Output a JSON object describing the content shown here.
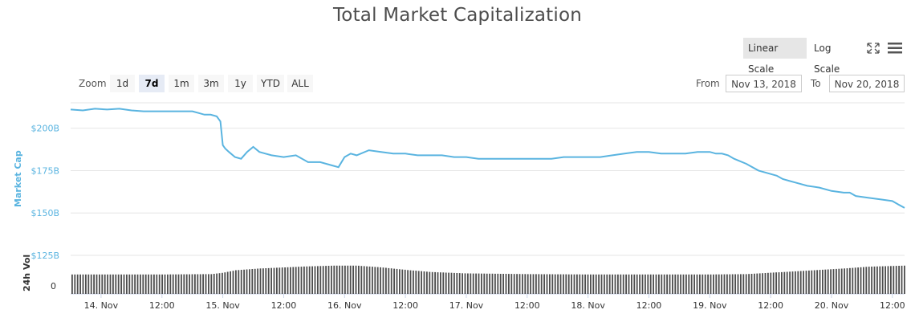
{
  "title": "Total Market Capitalization",
  "scale": {
    "linear_label": "Linear Scale",
    "log_label": "Log Scale"
  },
  "icons": {
    "fullscreen": "fullscreen-icon",
    "menu": "menu-icon"
  },
  "zoom": {
    "label": "Zoom",
    "options": [
      "1d",
      "7d",
      "1m",
      "3m",
      "1y",
      "YTD",
      "ALL"
    ],
    "selected": "7d"
  },
  "range": {
    "from_label": "From",
    "from_value": "Nov 13, 2018",
    "to_label": "To",
    "to_value": "Nov 20, 2018"
  },
  "colors": {
    "line": "#5ab4e0",
    "volume": "#4d4d4d",
    "grid": "#e6e6e6",
    "text": "#333333"
  },
  "chart_data": {
    "type": "line",
    "title": "Total Market Capitalization",
    "xlabel": "",
    "ylabel": "Market Cap",
    "y2label": "24h Vol",
    "ylim": [
      125,
      215
    ],
    "y_ticks": [
      "$200B",
      "$175B",
      "$150B",
      "$125B"
    ],
    "y_tick_values": [
      200,
      175,
      150,
      125
    ],
    "vol_ticks": [
      "0"
    ],
    "x_ticks": [
      "14. Nov",
      "12:00",
      "15. Nov",
      "12:00",
      "16. Nov",
      "12:00",
      "17. Nov",
      "12:00",
      "18. Nov",
      "12:00",
      "19. Nov",
      "12:00",
      "20. Nov",
      "12:00"
    ],
    "x_tick_values": [
      1,
      1.5,
      2,
      2.5,
      3,
      3.5,
      4,
      4.5,
      5,
      5.5,
      6,
      6.5,
      7,
      7.5
    ],
    "x_range": [
      0.75,
      7.6
    ],
    "grid": true,
    "series": [
      {
        "name": "Market Cap",
        "x": [
          0.75,
          0.85,
          0.95,
          1.05,
          1.15,
          1.25,
          1.35,
          1.45,
          1.55,
          1.65,
          1.75,
          1.8,
          1.85,
          1.9,
          1.95,
          1.98,
          2.0,
          2.02,
          2.05,
          2.1,
          2.15,
          2.2,
          2.25,
          2.3,
          2.35,
          2.4,
          2.5,
          2.6,
          2.7,
          2.8,
          2.9,
          2.95,
          3.0,
          3.05,
          3.1,
          3.2,
          3.3,
          3.4,
          3.5,
          3.6,
          3.7,
          3.8,
          3.9,
          4.0,
          4.1,
          4.2,
          4.3,
          4.4,
          4.5,
          4.6,
          4.7,
          4.8,
          4.9,
          5.0,
          5.1,
          5.2,
          5.3,
          5.4,
          5.5,
          5.6,
          5.7,
          5.8,
          5.9,
          6.0,
          6.05,
          6.1,
          6.15,
          6.2,
          6.3,
          6.4,
          6.5,
          6.55,
          6.6,
          6.65,
          6.7,
          6.8,
          6.9,
          7.0,
          7.1,
          7.15,
          7.2,
          7.3,
          7.4,
          7.5,
          7.55,
          7.6
        ],
        "values": [
          211,
          210.5,
          211.5,
          211,
          211.5,
          210.5,
          210,
          210,
          210,
          210,
          210,
          209,
          208,
          208,
          207,
          204,
          190,
          188,
          186,
          183,
          182,
          186,
          189,
          186,
          185,
          184,
          183,
          184,
          180,
          180,
          178,
          177,
          183,
          185,
          184,
          187,
          186,
          185,
          185,
          184,
          184,
          184,
          183,
          183,
          182,
          182,
          182,
          182,
          182,
          182,
          182,
          183,
          183,
          183,
          183,
          184,
          185,
          186,
          186,
          185,
          185,
          185,
          186,
          186,
          185,
          185,
          184,
          182,
          179,
          175,
          173,
          172,
          170,
          169,
          168,
          166,
          165,
          163,
          162,
          162,
          160,
          159,
          158,
          157,
          155,
          153
        ]
      },
      {
        "name": "24h Vol",
        "x": [
          0.75,
          1.5,
          1.9,
          2.0,
          2.1,
          2.3,
          2.5,
          2.7,
          2.9,
          3.0,
          3.1,
          3.3,
          3.5,
          3.7,
          4.0,
          4.5,
          5.0,
          5.5,
          6.0,
          6.3,
          6.5,
          6.7,
          6.9,
          7.1,
          7.3,
          7.6
        ],
        "values": [
          0.55,
          0.55,
          0.56,
          0.6,
          0.67,
          0.72,
          0.75,
          0.78,
          0.8,
          0.8,
          0.8,
          0.75,
          0.68,
          0.62,
          0.58,
          0.56,
          0.55,
          0.55,
          0.55,
          0.56,
          0.6,
          0.64,
          0.68,
          0.72,
          0.77,
          0.8
        ]
      }
    ]
  }
}
